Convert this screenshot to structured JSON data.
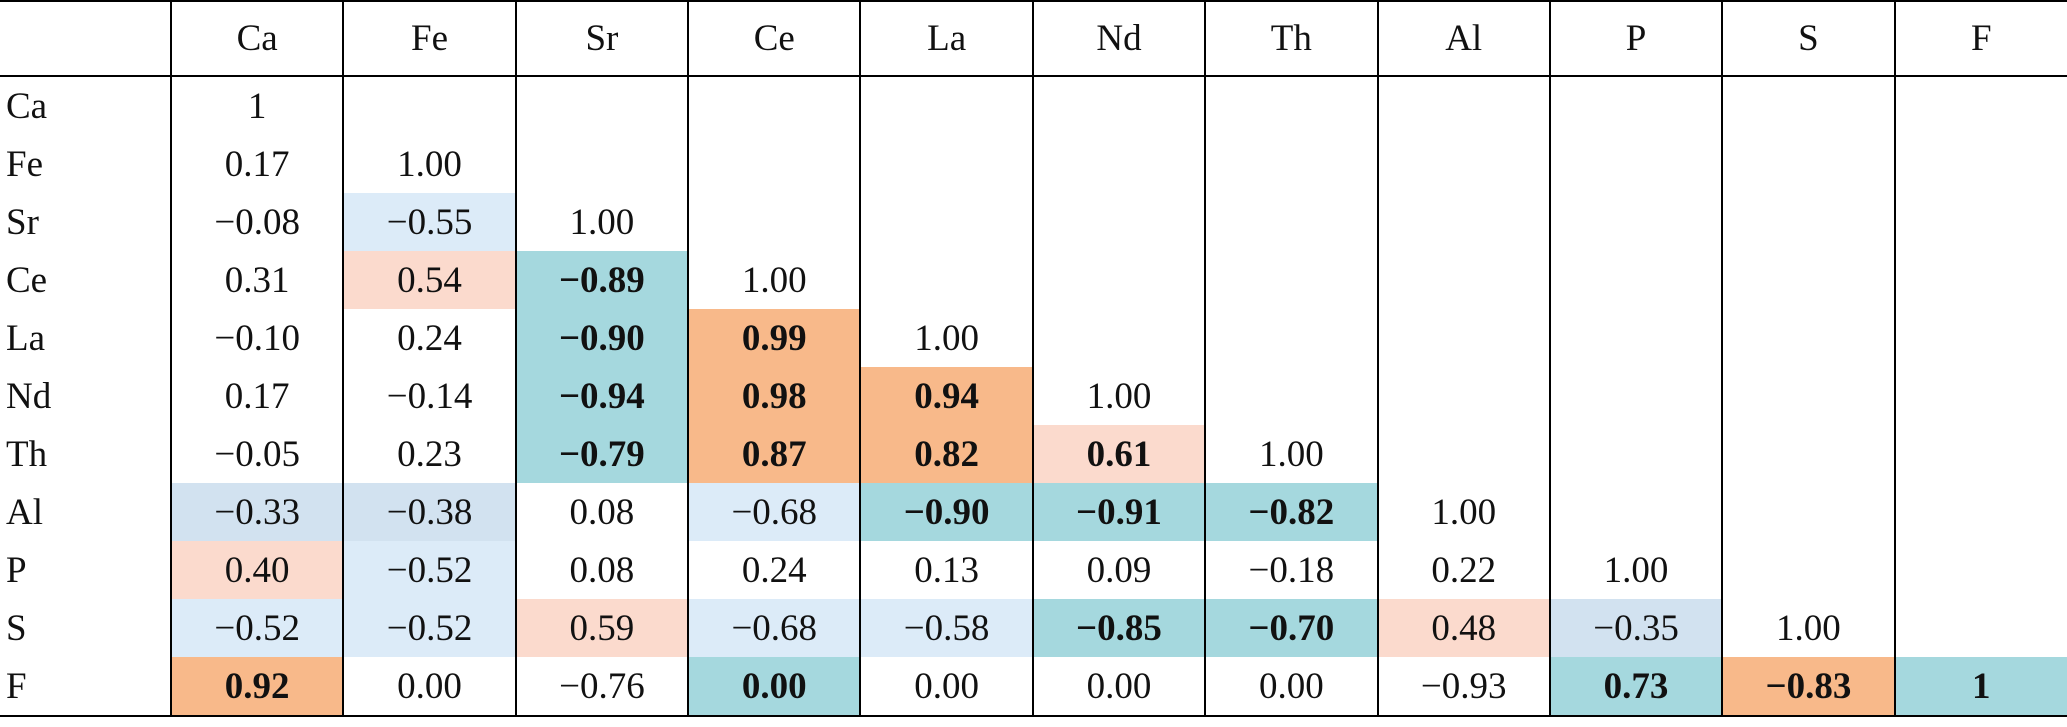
{
  "table": {
    "header": [
      "Ca",
      "Fe",
      "Sr",
      "Ce",
      "La",
      "Nd",
      "Th",
      "Al",
      "P",
      "S",
      "F"
    ],
    "rows": [
      {
        "label": "Ca",
        "cells": [
          "1"
        ]
      },
      {
        "label": "Fe",
        "cells": [
          "0.17",
          "1.00"
        ]
      },
      {
        "label": "Sr",
        "cells": [
          "−0.08",
          "−0.55",
          "1.00"
        ]
      },
      {
        "label": "Ce",
        "cells": [
          "0.31",
          "0.54",
          "−0.89",
          "1.00"
        ]
      },
      {
        "label": "La",
        "cells": [
          "−0.10",
          "0.24",
          "−0.90",
          "0.99",
          "1.00"
        ]
      },
      {
        "label": "Nd",
        "cells": [
          "0.17",
          "−0.14",
          "−0.94",
          "0.98",
          "0.94",
          "1.00"
        ]
      },
      {
        "label": "Th",
        "cells": [
          "−0.05",
          "0.23",
          "−0.79",
          "0.87",
          "0.82",
          "0.61",
          "1.00"
        ]
      },
      {
        "label": "Al",
        "cells": [
          "−0.33",
          "−0.38",
          "0.08",
          "−0.68",
          "−0.90",
          "−0.91",
          "−0.82",
          "1.00"
        ]
      },
      {
        "label": "P",
        "cells": [
          "0.40",
          "−0.52",
          "0.08",
          "0.24",
          "0.13",
          "0.09",
          "−0.18",
          "0.22",
          "1.00"
        ]
      },
      {
        "label": "S",
        "cells": [
          "−0.52",
          "−0.52",
          "0.59",
          "−0.68",
          "−0.58",
          "−0.85",
          "−0.70",
          "0.48",
          "−0.35",
          "1.00"
        ]
      },
      {
        "label": "F",
        "cells": [
          "0.92",
          "0.00",
          "−0.76",
          "0.00",
          "0.00",
          "0.00",
          "0.00",
          "−0.93",
          "0.73",
          "−0.83",
          "1"
        ]
      }
    ]
  }
}
